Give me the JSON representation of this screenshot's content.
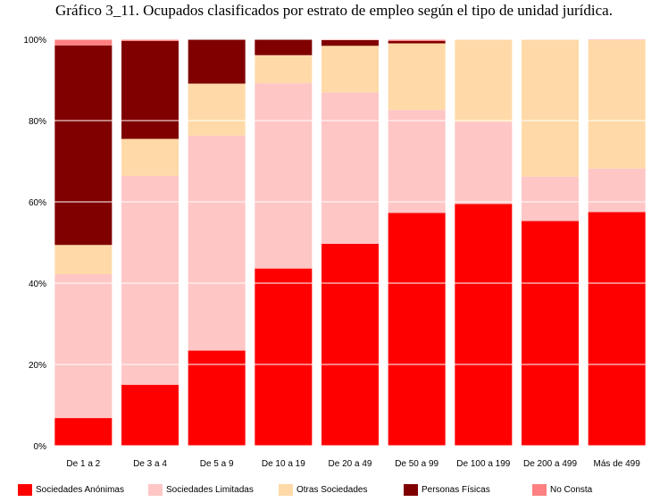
{
  "chart_data": {
    "type": "bar",
    "stacked": true,
    "normalized": true,
    "title": "Gráfico 3_11. Ocupados clasificados por estrato de empleo según el tipo de unidad jurídica.",
    "categories": [
      "De 1 a 2",
      "De 3 a 4",
      "De 5 a 9",
      "De 10 a 19",
      "De 20 a 49",
      "De 50 a 99",
      "De 100 a 199",
      "De 200 a 499",
      "Más de 499"
    ],
    "y_ticks": [
      "0%",
      "20%",
      "40%",
      "60%",
      "80%",
      "100%"
    ],
    "ylim": [
      0,
      100
    ],
    "grid": true,
    "legend_position": "bottom",
    "series": [
      {
        "name": "Sociedades Anónimas",
        "color": "#ff0000",
        "values": [
          6.8,
          15.0,
          23.4,
          43.6,
          49.7,
          57.3,
          59.5,
          55.3,
          57.5
        ]
      },
      {
        "name": "Sociedades Limitadas",
        "color": "#ffc6c6",
        "values": [
          35.4,
          51.4,
          52.9,
          45.6,
          37.2,
          25.3,
          20.2,
          10.9,
          10.7
        ]
      },
      {
        "name": "Otras Sociedades",
        "color": "#ffdaa8",
        "values": [
          7.2,
          9.1,
          12.8,
          6.9,
          11.5,
          16.4,
          20.3,
          33.8,
          31.6
        ]
      },
      {
        "name": "Personas Físicas",
        "color": "#800000",
        "values": [
          49.1,
          24.1,
          10.9,
          3.9,
          1.4,
          0.6,
          0.0,
          0.0,
          0.0
        ]
      },
      {
        "name": "No Consta",
        "color": "#ff8080",
        "values": [
          1.5,
          0.4,
          0.0,
          0.0,
          0.2,
          0.4,
          0.0,
          0.0,
          0.2
        ]
      }
    ]
  }
}
